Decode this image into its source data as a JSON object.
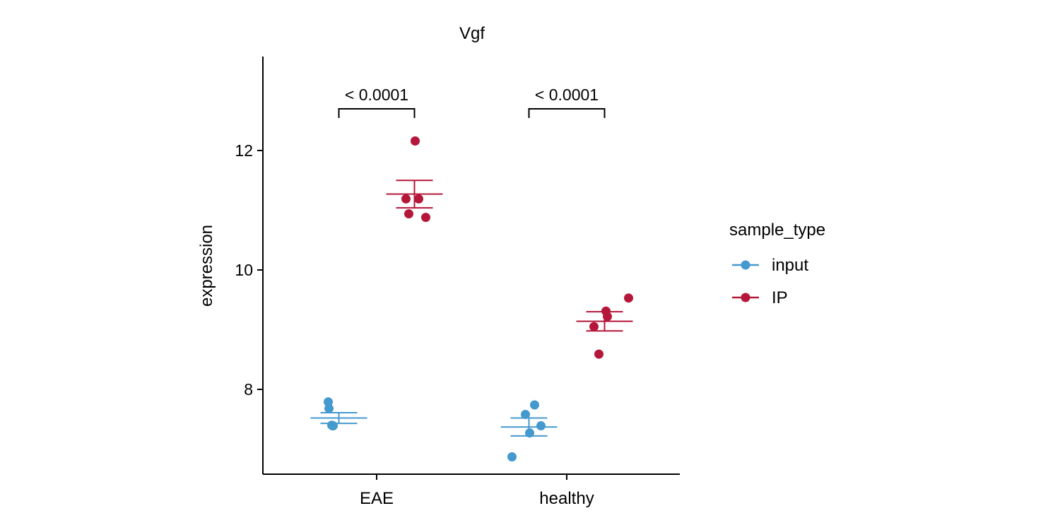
{
  "chart_data": {
    "type": "scatter",
    "title": "Vgf",
    "xlabel": "",
    "ylabel": "expression",
    "categories": [
      "EAE",
      "healthy"
    ],
    "y_ticks": [
      8,
      10,
      12
    ],
    "ylim": [
      6.6,
      13.6
    ],
    "grid": false,
    "legend_position": "right",
    "legend_title": "sample_type",
    "series": [
      {
        "name": "input",
        "color": "#4499cf",
        "points": [
          {
            "category": "EAE",
            "values": [
              7.79,
              7.68,
              7.4,
              7.39,
              7.39
            ]
          },
          {
            "category": "healthy",
            "values": [
              6.87,
              7.58,
              7.74,
              7.27,
              7.39
            ]
          }
        ],
        "mean": [
          7.52,
          7.37
        ],
        "se": [
          0.09,
          0.15
        ]
      },
      {
        "name": "IP",
        "color": "#b5173a",
        "points": [
          {
            "category": "EAE",
            "values": [
              12.16,
              11.19,
              11.19,
              10.94,
              10.88
            ]
          },
          {
            "category": "healthy",
            "values": [
              9.05,
              9.31,
              9.22,
              9.53,
              8.59
            ]
          }
        ],
        "mean": [
          11.27,
          9.14
        ],
        "se": [
          0.23,
          0.16
        ]
      }
    ],
    "comparisons": [
      {
        "category": "EAE",
        "label": "< 0.0001"
      },
      {
        "category": "healthy",
        "label": "< 0.0001"
      }
    ]
  }
}
